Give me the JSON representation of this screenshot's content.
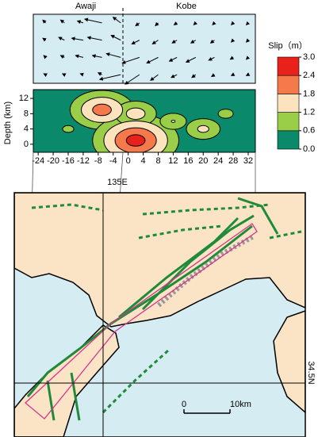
{
  "chart_data": {
    "type": "contour",
    "panel_labels": [
      "Awaji",
      "Kobe"
    ],
    "ylabel": "Depth (km)",
    "xlim": [
      -25.3,
      33.9
    ],
    "ylim": [
      -2.1,
      14.3
    ],
    "xticks": [
      -24,
      -20,
      -16,
      -12,
      -8,
      -4,
      0,
      4,
      8,
      12,
      16,
      20,
      24,
      28,
      32
    ],
    "yticks": [
      0,
      4,
      8,
      12
    ],
    "colorbar": {
      "title": "Slip（m）",
      "ticks": [
        {
          "value": 0,
          "label": "0.0"
        },
        0.6,
        1.2,
        1.8,
        2.4,
        {
          "value": 3,
          "label": "3.0"
        }
      ],
      "colors": [
        "#0a8a6a",
        "#9acd48",
        "#fde3bd",
        "#f5794a",
        "#e8211a"
      ]
    },
    "peaks": [
      {
        "x": -7,
        "depth": 9,
        "slip": 2.3
      },
      {
        "x": 2,
        "depth": 1,
        "slip": 2.9
      },
      {
        "x": 2,
        "depth": 8,
        "slip": 1.7
      },
      {
        "x": 20,
        "depth": 4,
        "slip": 1.5
      },
      {
        "x": 12,
        "depth": 6,
        "slip": 1.3
      },
      {
        "x": -16,
        "depth": 4,
        "slip": 0.9
      },
      {
        "x": 26,
        "depth": 8,
        "slip": 1.0
      }
    ],
    "vectors": {
      "x": [
        -22,
        -17,
        -12,
        -7,
        -2,
        3,
        8,
        13,
        18,
        23,
        28,
        32
      ],
      "depth": [
        12,
        8,
        4,
        0
      ],
      "east": [
        [
          -0.3,
          -0.4,
          -0.6,
          -1.8,
          -0.8,
          -0.4,
          -0.3,
          -0.3,
          -0.2,
          -0.2,
          -0.2,
          -0.2
        ],
        [
          -0.3,
          -0.6,
          -1.2,
          -1.5,
          -1.0,
          -0.8,
          -0.6,
          -0.5,
          -0.5,
          -0.4,
          -0.2,
          -0.2
        ],
        [
          -0.2,
          -0.4,
          -0.8,
          -1.0,
          -1.5,
          -1.8,
          -1.2,
          -0.8,
          -1.0,
          -0.6,
          -0.3,
          -0.2
        ],
        [
          -0.2,
          -0.2,
          -0.3,
          -0.4,
          -2.2,
          -1.5,
          -0.8,
          -0.6,
          -0.4,
          -0.3,
          -0.2,
          -0.2
        ]
      ],
      "north": [
        [
          0.3,
          0.3,
          0.2,
          0.4,
          0.6,
          -0.3,
          -0.3,
          -0.2,
          -0.2,
          -0.2,
          -0.2,
          -0.2
        ],
        [
          0.2,
          0.3,
          0.2,
          0.3,
          0.5,
          -0.4,
          -0.4,
          -0.3,
          -0.3,
          -0.3,
          -0.2,
          -0.2
        ],
        [
          0.2,
          0.2,
          0.2,
          0.2,
          0.4,
          -0.6,
          -0.6,
          -0.4,
          -0.5,
          -0.3,
          -0.2,
          -0.2
        ],
        [
          0.1,
          0.1,
          0.1,
          0.2,
          -0.5,
          -1.0,
          -0.6,
          -0.3,
          -0.3,
          -0.2,
          -0.1,
          -0.1
        ]
      ]
    }
  },
  "map": {
    "meridian_label": "135E",
    "parallel_label": "34.5N",
    "scale_bar": {
      "ticks": [
        0,
        {
          "value": 10,
          "label": "10km"
        }
      ]
    }
  }
}
